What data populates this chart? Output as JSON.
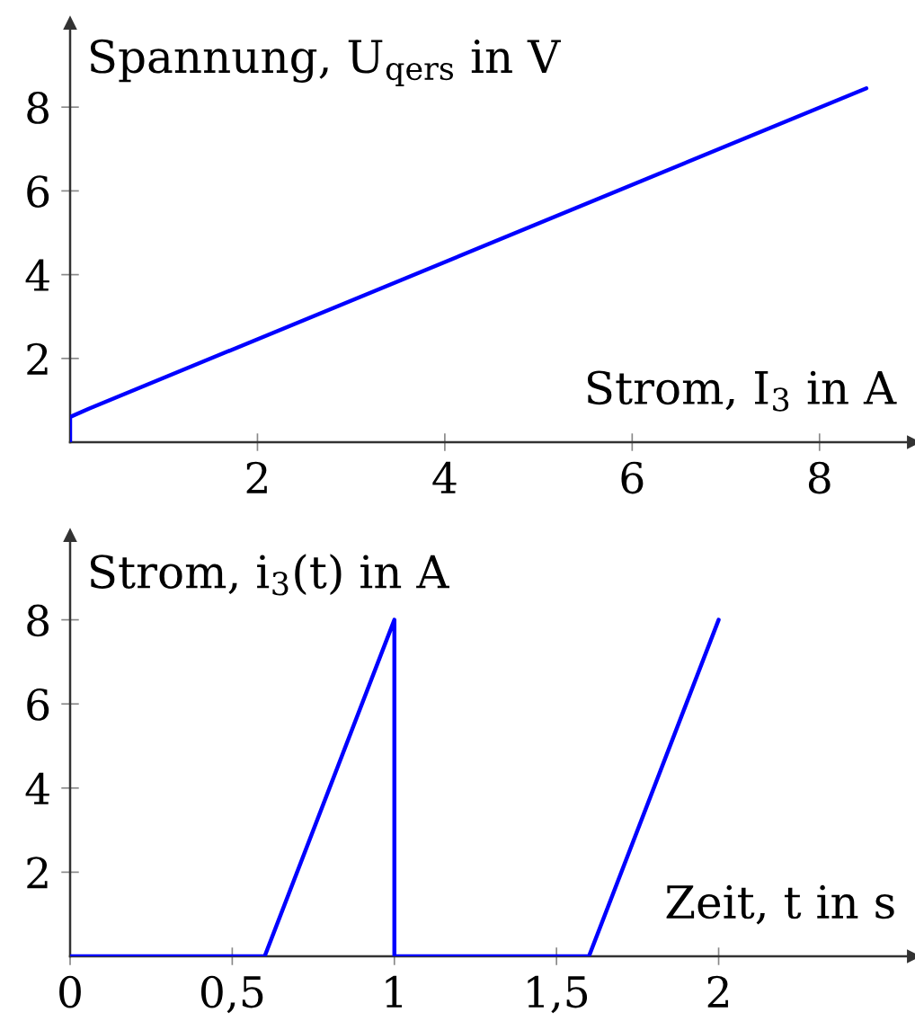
{
  "chart_data": [
    {
      "type": "line",
      "xlabel": "Strom, I$_{3}$ in A",
      "ylabel": "Spannung, U$_{qers}$ in V",
      "xlim": [
        0,
        9
      ],
      "ylim": [
        0,
        10
      ],
      "xticks": [
        2,
        4,
        6,
        8
      ],
      "yticks": [
        2,
        4,
        6,
        8
      ],
      "grid": false,
      "line_style": "solid",
      "marker": "none",
      "series": [
        {
          "color": "#0000ff",
          "x": [
            0,
            0,
            0.2,
            8.5
          ],
          "values": [
            0,
            0.6,
            0.8,
            8.45
          ]
        }
      ]
    },
    {
      "type": "line",
      "xlabel": "Zeit, t in s",
      "ylabel": "Strom, i$_{3}$(t) in A",
      "xlim": [
        0,
        2.6
      ],
      "ylim": [
        0,
        10
      ],
      "xticks": [
        0,
        {
          "value": 0.5,
          "label": "0,5"
        },
        1,
        {
          "value": 1.5,
          "label": "1,5"
        },
        2
      ],
      "yticks": [
        2,
        4,
        6,
        8
      ],
      "grid": false,
      "line_style": "solid",
      "marker": "none",
      "series": [
        {
          "color": "#0000ff",
          "x": [
            0,
            0.6,
            1,
            1,
            1.6,
            2
          ],
          "values": [
            0,
            0,
            8,
            0,
            0,
            8
          ]
        }
      ]
    }
  ]
}
